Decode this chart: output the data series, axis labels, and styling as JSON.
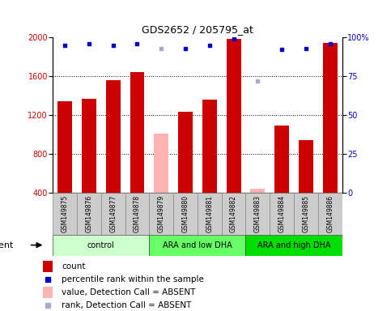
{
  "title": "GDS2652 / 205795_at",
  "samples": [
    "GSM149875",
    "GSM149876",
    "GSM149877",
    "GSM149878",
    "GSM149879",
    "GSM149880",
    "GSM149881",
    "GSM149882",
    "GSM149883",
    "GSM149884",
    "GSM149885",
    "GSM149886"
  ],
  "count_values": [
    1340,
    1370,
    1560,
    1640,
    null,
    1230,
    1360,
    1980,
    null,
    1090,
    940,
    1940
  ],
  "absent_value": [
    null,
    null,
    null,
    null,
    1010,
    null,
    null,
    null,
    440,
    null,
    null,
    null
  ],
  "percentile_rank": [
    95,
    96,
    95,
    96,
    null,
    93,
    95,
    99,
    null,
    92,
    93,
    96
  ],
  "absent_rank": [
    null,
    null,
    null,
    null,
    93,
    null,
    null,
    null,
    72,
    null,
    null,
    null
  ],
  "ylim_left": [
    400,
    2000
  ],
  "ylim_right": [
    0,
    100
  ],
  "yticks_left": [
    400,
    800,
    1200,
    1600,
    2000
  ],
  "yticks_right": [
    0,
    25,
    50,
    75,
    100
  ],
  "bar_color_present": "#cc0000",
  "bar_color_absent": "#ffb3b3",
  "dot_color_present": "#0000cc",
  "dot_color_absent": "#aaaacc",
  "groups": [
    {
      "label": "control",
      "start": 0,
      "end": 4,
      "color": "#ccffcc"
    },
    {
      "label": "ARA and low DHA",
      "start": 4,
      "end": 8,
      "color": "#66ff66"
    },
    {
      "label": "ARA and high DHA",
      "start": 8,
      "end": 12,
      "color": "#00dd00"
    }
  ],
  "background_color": "#ffffff",
  "left_axis_color": "#cc0000",
  "right_axis_color": "#0000cc"
}
